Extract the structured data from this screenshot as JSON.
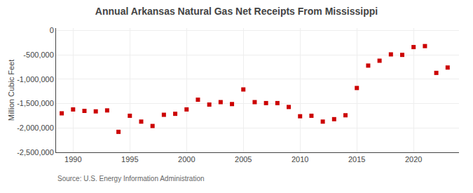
{
  "chart_data": {
    "type": "scatter",
    "title": "Annual Arkansas Natural Gas Net Receipts From Mississippi",
    "ylabel": "Million Cubic Feet",
    "annotations": [
      {
        "text": "Source: U.S. Energy Information Administration"
      }
    ],
    "x": [
      1989,
      1990,
      1991,
      1992,
      1993,
      1994,
      1995,
      1996,
      1997,
      1998,
      1999,
      2000,
      2001,
      2002,
      2003,
      2004,
      2005,
      2006,
      2007,
      2008,
      2009,
      2010,
      2011,
      2012,
      2013,
      2014,
      2015,
      2016,
      2017,
      2018,
      2019,
      2020,
      2021,
      2022,
      2023
    ],
    "values": [
      -1700000,
      -1620000,
      -1650000,
      -1660000,
      -1640000,
      -2080000,
      -1750000,
      -1870000,
      -1960000,
      -1730000,
      -1710000,
      -1620000,
      -1420000,
      -1520000,
      -1470000,
      -1510000,
      -1210000,
      -1470000,
      -1490000,
      -1490000,
      -1570000,
      -1760000,
      -1750000,
      -1870000,
      -1820000,
      -1740000,
      -1180000,
      -720000,
      -620000,
      -490000,
      -500000,
      -340000,
      -320000,
      -870000,
      -760000
    ],
    "color": "#cc0000",
    "marker": "square",
    "xlim": [
      1988.5,
      2024
    ],
    "ylim": [
      -2500000,
      50000
    ],
    "xticks": [
      1990,
      1995,
      2000,
      2005,
      2010,
      2015,
      2020
    ],
    "yticks": [
      0,
      {
        "value": -500000,
        "label": "-500,000"
      },
      {
        "value": -1000000,
        "label": "-1,000,000"
      },
      {
        "value": -1500000,
        "label": "-1,500,000"
      },
      {
        "value": -2000000,
        "label": "-2,000,000"
      },
      {
        "value": -2500000,
        "label": "-2,500,000"
      }
    ],
    "grid": true
  }
}
